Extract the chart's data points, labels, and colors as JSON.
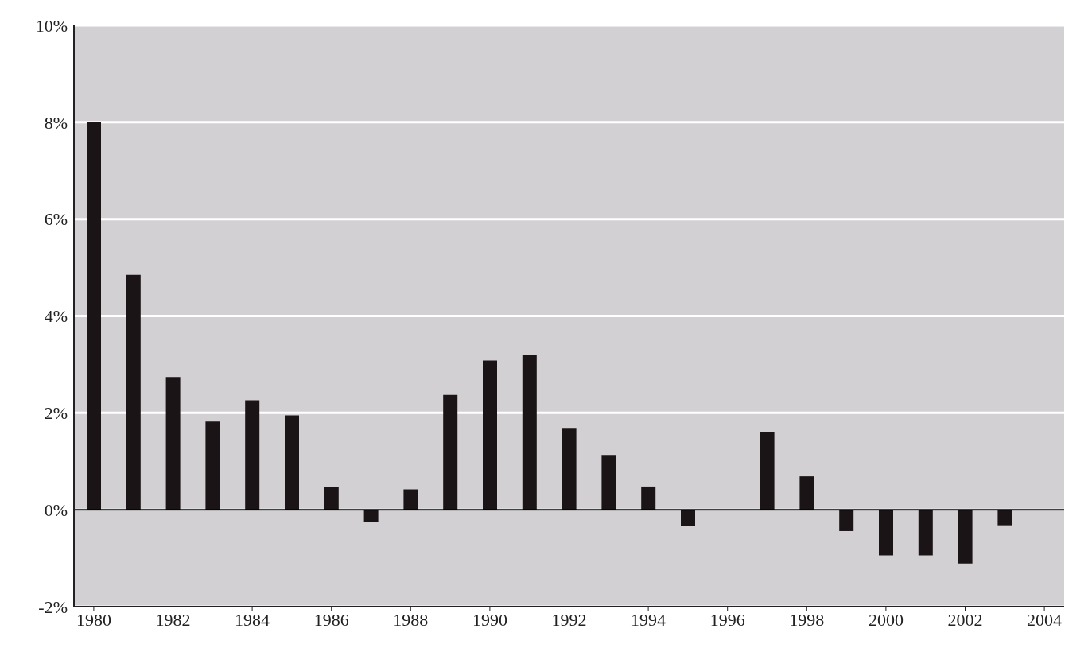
{
  "chart_data": {
    "type": "bar",
    "x": [
      1980,
      1981,
      1982,
      1983,
      1984,
      1985,
      1986,
      1987,
      1988,
      1989,
      1990,
      1991,
      1992,
      1993,
      1994,
      1995,
      1996,
      1997,
      1998,
      1999,
      2000,
      2001,
      2002,
      2003
    ],
    "values": [
      8.0,
      4.85,
      2.74,
      1.82,
      2.26,
      1.95,
      0.47,
      -0.26,
      0.42,
      2.37,
      3.08,
      3.19,
      1.69,
      1.13,
      0.48,
      -0.34,
      0,
      1.61,
      0.69,
      -0.44,
      -0.94,
      -0.94,
      -1.11,
      -0.32
    ],
    "color": "#1a1416",
    "xlim": [
      1979.5,
      2004.5
    ],
    "xticks": [
      1980,
      1982,
      1984,
      1986,
      1988,
      1990,
      1992,
      1994,
      1996,
      1998,
      2000,
      2002,
      2004
    ],
    "ylim": [
      -2,
      10
    ],
    "yticks": [
      {
        "value": -2,
        "label": "-2%"
      },
      {
        "value": 0,
        "label": "0%"
      },
      {
        "value": 2,
        "label": "2%"
      },
      {
        "value": 4,
        "label": "4%"
      },
      {
        "value": 6,
        "label": "6%"
      },
      {
        "value": 8,
        "label": "8%"
      },
      {
        "value": 10,
        "label": "10%"
      }
    ],
    "grid": "y",
    "ref_lines": [
      {
        "axis": "y",
        "value": 0,
        "color": "#000000"
      }
    ]
  }
}
